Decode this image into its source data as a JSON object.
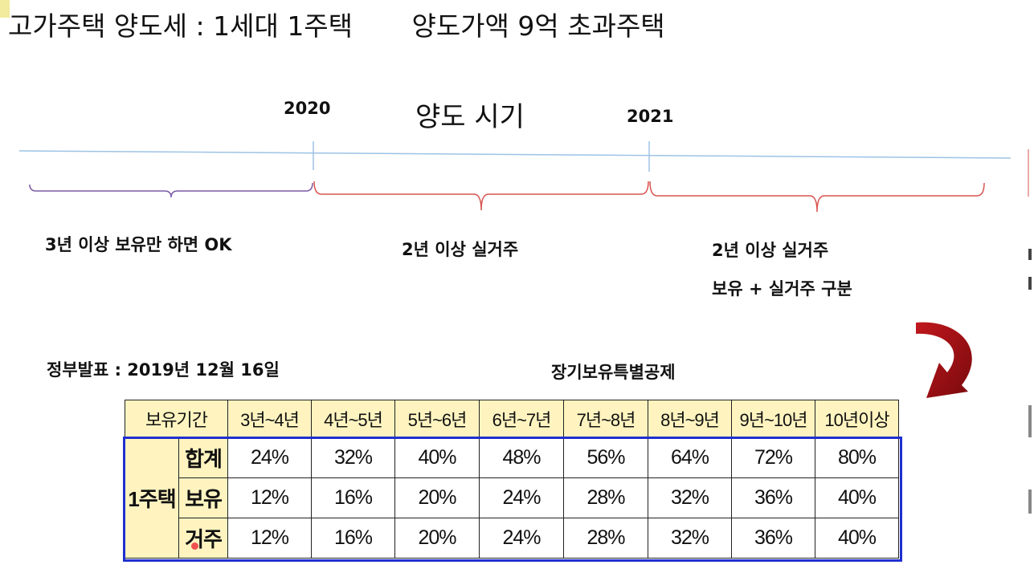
{
  "title": "고가주택 양도세 : 1세대 1주택       양도가액 9억 초과주택",
  "timeline": {
    "period_title": "양도 시기",
    "year_2020": "2020",
    "year_2021": "2021",
    "segments": [
      {
        "label": "3년 이상 보유만 하면 OK"
      },
      {
        "label": "2년 이상 실거주"
      },
      {
        "label": "2년 이상 실거주",
        "sub_label": "보유 + 실거주 구분"
      }
    ],
    "colors": {
      "axis": "#9dc3e6",
      "brace_first": "#7b5aa6",
      "brace_rest": "#d9534f",
      "arrow": "#a50e12"
    }
  },
  "announcement": "정부발표 : 2019년 12월 16일",
  "table": {
    "title": "장기보유특별공제",
    "header_label": "보유기간",
    "columns": [
      "3년~4년",
      "4년~5년",
      "5년~6년",
      "6년~7년",
      "7년~8년",
      "8년~9년",
      "9년~10년",
      "10년이상"
    ],
    "group_label": "1주택",
    "rows": [
      {
        "label": "합계",
        "values": [
          "24%",
          "32%",
          "40%",
          "48%",
          "56%",
          "64%",
          "72%",
          "80%"
        ]
      },
      {
        "label": "보유",
        "values": [
          "12%",
          "16%",
          "20%",
          "24%",
          "28%",
          "32%",
          "36%",
          "40%"
        ]
      },
      {
        "label": "거주",
        "values": [
          "12%",
          "16%",
          "20%",
          "24%",
          "28%",
          "32%",
          "36%",
          "40%"
        ]
      }
    ]
  }
}
